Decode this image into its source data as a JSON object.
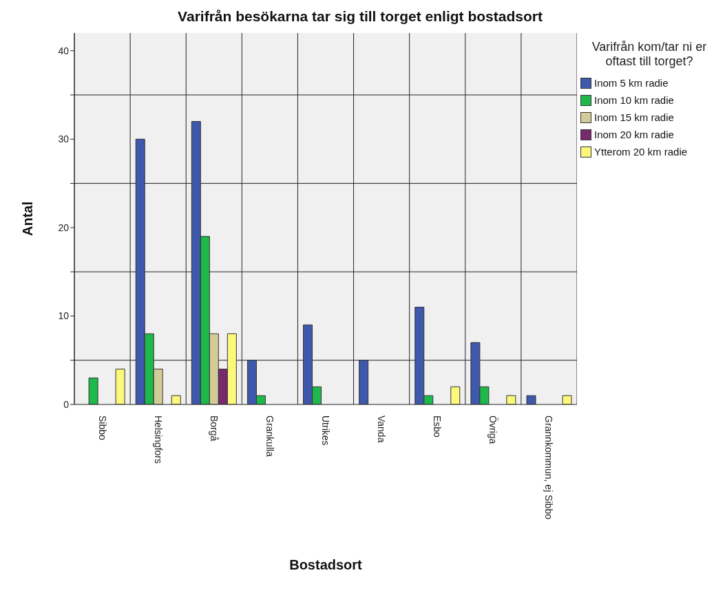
{
  "chart_data": {
    "type": "bar",
    "title": "Varifrån besökarna tar sig till torget enligt bostadsort",
    "xlabel": "Bostadsort",
    "ylabel": "Antal",
    "legend_title": "Varifrån kom/tar ni er oftast till torget?",
    "legend": "right",
    "grid": true,
    "categories": [
      "Sibbo",
      "Helsingfors",
      "Borgå",
      "Grankulla",
      "Utrikes",
      "Vanda",
      "Esbo",
      "Övriga",
      "Grannkommun, ej Sibbo"
    ],
    "ylim": [
      0,
      42
    ],
    "yticks": [
      0,
      {
        "value": 5,
        "label": null
      },
      10,
      {
        "value": 15,
        "label": null
      },
      20,
      {
        "value": 25,
        "label": null
      },
      30,
      {
        "value": 35,
        "label": null
      },
      40
    ],
    "series": [
      {
        "name": "Inom 5 km radie",
        "color": "#3e58ac",
        "values": [
          null,
          30,
          32,
          5,
          9,
          5,
          11,
          7,
          1
        ]
      },
      {
        "name": "Inom 10 km radie",
        "color": "#1fb84a",
        "values": [
          3,
          8,
          19,
          1,
          2,
          null,
          1,
          2,
          null
        ]
      },
      {
        "name": "Inom 15 km radie",
        "color": "#d4cc98",
        "values": [
          null,
          4,
          8,
          null,
          null,
          null,
          null,
          null,
          null
        ]
      },
      {
        "name": "Inom 20 km radie",
        "color": "#782a6f",
        "values": [
          null,
          null,
          4,
          null,
          null,
          null,
          null,
          null,
          null
        ]
      },
      {
        "name": "Ytterom 20 km radie",
        "color": "#fbf87a",
        "values": [
          4,
          1,
          8,
          null,
          null,
          null,
          2,
          1,
          1
        ]
      }
    ]
  }
}
